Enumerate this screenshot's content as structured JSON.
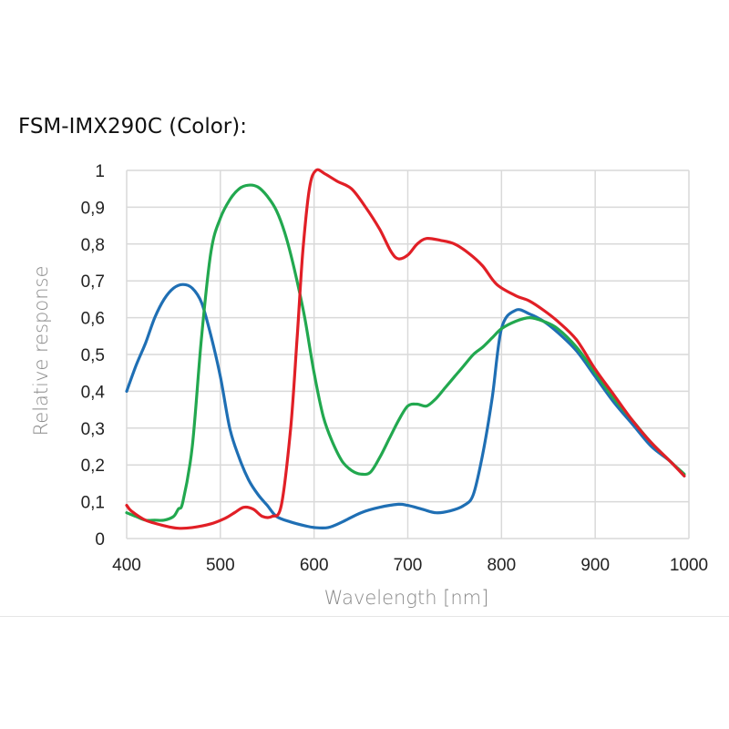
{
  "chart_data": {
    "type": "line",
    "title": "FSM-IMX290C (Color):",
    "xlabel": "Wavelength [nm]",
    "ylabel": "Relative response",
    "xlim": [
      400,
      1000
    ],
    "ylim": [
      0,
      1
    ],
    "x_ticks": [
      "400",
      "500",
      "600",
      "700",
      "800",
      "900",
      "1000"
    ],
    "y_ticks": [
      "0",
      "0,1",
      "0,2",
      "0,3",
      "0,4",
      "0,5",
      "0,6",
      "0,7",
      "0,8",
      "0,9",
      "1"
    ],
    "grid": true,
    "legend": "none",
    "series": [
      {
        "color": "#1f6fb4",
        "points": [
          [
            400,
            0.4
          ],
          [
            410,
            0.47
          ],
          [
            420,
            0.53
          ],
          [
            430,
            0.6
          ],
          [
            440,
            0.65
          ],
          [
            450,
            0.68
          ],
          [
            460,
            0.69
          ],
          [
            470,
            0.68
          ],
          [
            480,
            0.64
          ],
          [
            490,
            0.55
          ],
          [
            500,
            0.44
          ],
          [
            510,
            0.3
          ],
          [
            520,
            0.22
          ],
          [
            530,
            0.16
          ],
          [
            540,
            0.12
          ],
          [
            550,
            0.09
          ],
          [
            560,
            0.06
          ],
          [
            575,
            0.045
          ],
          [
            590,
            0.035
          ],
          [
            600,
            0.03
          ],
          [
            615,
            0.03
          ],
          [
            630,
            0.045
          ],
          [
            650,
            0.07
          ],
          [
            670,
            0.085
          ],
          [
            690,
            0.093
          ],
          [
            700,
            0.09
          ],
          [
            715,
            0.08
          ],
          [
            730,
            0.07
          ],
          [
            745,
            0.075
          ],
          [
            760,
            0.09
          ],
          [
            770,
            0.12
          ],
          [
            780,
            0.23
          ],
          [
            790,
            0.38
          ],
          [
            800,
            0.57
          ],
          [
            815,
            0.62
          ],
          [
            830,
            0.61
          ],
          [
            845,
            0.59
          ],
          [
            860,
            0.56
          ],
          [
            880,
            0.51
          ],
          [
            900,
            0.44
          ],
          [
            920,
            0.37
          ],
          [
            940,
            0.31
          ],
          [
            960,
            0.25
          ],
          [
            980,
            0.21
          ],
          [
            995,
            0.17
          ]
        ]
      },
      {
        "color": "#22a84f",
        "points": [
          [
            400,
            0.07
          ],
          [
            410,
            0.06
          ],
          [
            420,
            0.05
          ],
          [
            430,
            0.05
          ],
          [
            440,
            0.05
          ],
          [
            450,
            0.06
          ],
          [
            455,
            0.08
          ],
          [
            460,
            0.1
          ],
          [
            470,
            0.25
          ],
          [
            480,
            0.55
          ],
          [
            490,
            0.78
          ],
          [
            500,
            0.87
          ],
          [
            510,
            0.92
          ],
          [
            520,
            0.95
          ],
          [
            530,
            0.96
          ],
          [
            540,
            0.955
          ],
          [
            550,
            0.93
          ],
          [
            560,
            0.89
          ],
          [
            570,
            0.82
          ],
          [
            580,
            0.72
          ],
          [
            590,
            0.6
          ],
          [
            600,
            0.45
          ],
          [
            610,
            0.33
          ],
          [
            620,
            0.26
          ],
          [
            630,
            0.21
          ],
          [
            640,
            0.185
          ],
          [
            650,
            0.175
          ],
          [
            660,
            0.18
          ],
          [
            670,
            0.22
          ],
          [
            680,
            0.27
          ],
          [
            690,
            0.32
          ],
          [
            700,
            0.36
          ],
          [
            710,
            0.365
          ],
          [
            720,
            0.36
          ],
          [
            730,
            0.38
          ],
          [
            740,
            0.41
          ],
          [
            750,
            0.44
          ],
          [
            760,
            0.47
          ],
          [
            770,
            0.5
          ],
          [
            780,
            0.52
          ],
          [
            790,
            0.545
          ],
          [
            800,
            0.57
          ],
          [
            815,
            0.59
          ],
          [
            830,
            0.6
          ],
          [
            845,
            0.59
          ],
          [
            860,
            0.57
          ],
          [
            880,
            0.52
          ],
          [
            900,
            0.45
          ],
          [
            920,
            0.38
          ],
          [
            940,
            0.32
          ],
          [
            960,
            0.26
          ],
          [
            980,
            0.21
          ],
          [
            995,
            0.175
          ]
        ]
      },
      {
        "color": "#e11f26",
        "points": [
          [
            400,
            0.09
          ],
          [
            405,
            0.075
          ],
          [
            420,
            0.05
          ],
          [
            440,
            0.035
          ],
          [
            455,
            0.028
          ],
          [
            470,
            0.03
          ],
          [
            490,
            0.04
          ],
          [
            505,
            0.055
          ],
          [
            515,
            0.07
          ],
          [
            525,
            0.085
          ],
          [
            535,
            0.08
          ],
          [
            545,
            0.06
          ],
          [
            555,
            0.06
          ],
          [
            565,
            0.09
          ],
          [
            575,
            0.3
          ],
          [
            582,
            0.55
          ],
          [
            588,
            0.78
          ],
          [
            595,
            0.95
          ],
          [
            602,
            1.0
          ],
          [
            612,
            0.99
          ],
          [
            625,
            0.97
          ],
          [
            640,
            0.95
          ],
          [
            655,
            0.9
          ],
          [
            670,
            0.84
          ],
          [
            682,
            0.78
          ],
          [
            690,
            0.76
          ],
          [
            700,
            0.77
          ],
          [
            710,
            0.8
          ],
          [
            720,
            0.815
          ],
          [
            735,
            0.81
          ],
          [
            750,
            0.8
          ],
          [
            765,
            0.775
          ],
          [
            780,
            0.74
          ],
          [
            795,
            0.69
          ],
          [
            815,
            0.66
          ],
          [
            830,
            0.645
          ],
          [
            845,
            0.62
          ],
          [
            860,
            0.59
          ],
          [
            880,
            0.54
          ],
          [
            900,
            0.46
          ],
          [
            920,
            0.39
          ],
          [
            940,
            0.32
          ],
          [
            960,
            0.26
          ],
          [
            980,
            0.21
          ],
          [
            995,
            0.17
          ]
        ]
      }
    ]
  }
}
